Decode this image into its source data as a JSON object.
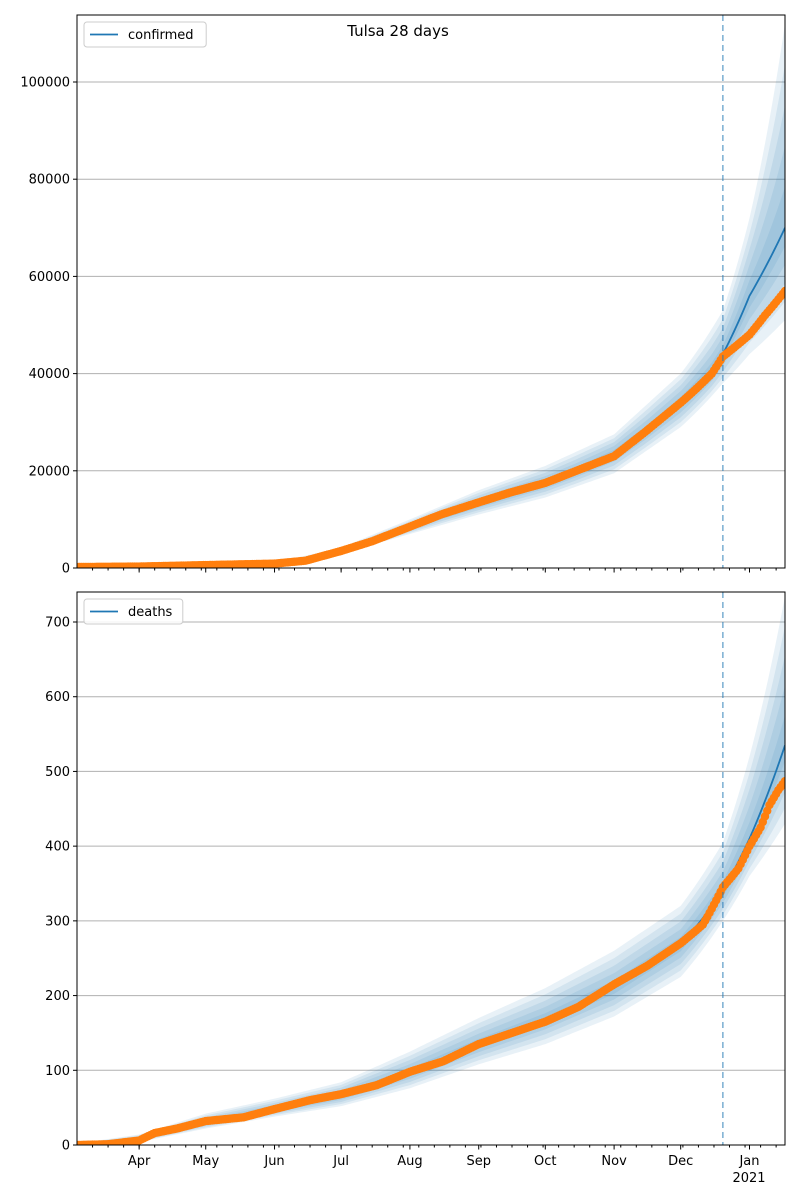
{
  "chart_data": {
    "type": "line",
    "title": "Tulsa 28 days",
    "x_axis": {
      "unit": "days since 2020-03-04",
      "range": [
        0,
        319
      ],
      "ticks": [
        {
          "day": 28,
          "label": "Apr"
        },
        {
          "day": 58,
          "label": "May"
        },
        {
          "day": 89,
          "label": "Jun"
        },
        {
          "day": 119,
          "label": "Jul"
        },
        {
          "day": 150,
          "label": "Aug"
        },
        {
          "day": 181,
          "label": "Sep"
        },
        {
          "day": 211,
          "label": "Oct"
        },
        {
          "day": 242,
          "label": "Nov"
        },
        {
          "day": 272,
          "label": "Dec"
        },
        {
          "day": 303,
          "label": "Jan"
        }
      ],
      "year_label": "2021",
      "forecast_start_day": 291
    },
    "colors": {
      "model": "#1f77b4",
      "observed": "#ff7f0e",
      "grid": "#b0b0b0"
    },
    "panels": [
      {
        "legend": "confirmed",
        "legend_placement": "top-left",
        "ylim": [
          0,
          114000
        ],
        "yticks": [
          0,
          20000,
          40000,
          60000,
          80000,
          100000
        ],
        "grid": true,
        "observed": [
          [
            0,
            200
          ],
          [
            28,
            300
          ],
          [
            58,
            600
          ],
          [
            89,
            900
          ],
          [
            103,
            1500
          ],
          [
            119,
            3500
          ],
          [
            133,
            5500
          ],
          [
            150,
            8500
          ],
          [
            164,
            11000
          ],
          [
            181,
            13500
          ],
          [
            195,
            15500
          ],
          [
            211,
            17500
          ],
          [
            225,
            20000
          ],
          [
            242,
            23000
          ],
          [
            256,
            28000
          ],
          [
            272,
            34000
          ],
          [
            286,
            40000
          ],
          [
            291,
            43500
          ],
          [
            303,
            48000
          ],
          [
            310,
            52000
          ],
          [
            319,
            57000
          ]
        ],
        "model": [
          [
            0,
            200
          ],
          [
            28,
            300
          ],
          [
            58,
            600
          ],
          [
            89,
            900
          ],
          [
            103,
            1500
          ],
          [
            119,
            3500
          ],
          [
            133,
            5500
          ],
          [
            150,
            8300
          ],
          [
            164,
            10800
          ],
          [
            181,
            13300
          ],
          [
            195,
            15300
          ],
          [
            211,
            17500
          ],
          [
            225,
            20000
          ],
          [
            242,
            23500
          ],
          [
            256,
            28000
          ],
          [
            272,
            34000
          ],
          [
            286,
            40500
          ],
          [
            291,
            44000
          ],
          [
            303,
            56000
          ],
          [
            319,
            70000
          ]
        ],
        "band_outer_upper": [
          [
            0,
            250
          ],
          [
            89,
            1100
          ],
          [
            119,
            4200
          ],
          [
            150,
            10000
          ],
          [
            181,
            16000
          ],
          [
            211,
            21000
          ],
          [
            242,
            27500
          ],
          [
            272,
            40000
          ],
          [
            291,
            53000
          ],
          [
            303,
            72000
          ],
          [
            319,
            112000
          ]
        ],
        "band_outer_lower": [
          [
            0,
            150
          ],
          [
            89,
            700
          ],
          [
            119,
            2900
          ],
          [
            150,
            7000
          ],
          [
            181,
            11000
          ],
          [
            211,
            14500
          ],
          [
            242,
            19500
          ],
          [
            272,
            29000
          ],
          [
            291,
            38000
          ],
          [
            303,
            44000
          ],
          [
            319,
            51000
          ]
        ]
      },
      {
        "legend": "deaths",
        "legend_placement": "top-left",
        "ylim": [
          0,
          740
        ],
        "yticks": [
          0,
          100,
          200,
          300,
          400,
          500,
          600,
          700
        ],
        "grid": true,
        "observed": [
          [
            0,
            0
          ],
          [
            14,
            1
          ],
          [
            28,
            6
          ],
          [
            35,
            16
          ],
          [
            45,
            22
          ],
          [
            58,
            32
          ],
          [
            75,
            37
          ],
          [
            89,
            48
          ],
          [
            105,
            60
          ],
          [
            119,
            68
          ],
          [
            135,
            80
          ],
          [
            150,
            98
          ],
          [
            165,
            112
          ],
          [
            181,
            135
          ],
          [
            196,
            150
          ],
          [
            211,
            165
          ],
          [
            226,
            185
          ],
          [
            242,
            215
          ],
          [
            257,
            240
          ],
          [
            272,
            270
          ],
          [
            282,
            295
          ],
          [
            291,
            345
          ],
          [
            298,
            370
          ],
          [
            303,
            400
          ],
          [
            308,
            425
          ],
          [
            312,
            455
          ],
          [
            316,
            475
          ],
          [
            319,
            487
          ]
        ],
        "model": [
          [
            0,
            0
          ],
          [
            28,
            8
          ],
          [
            58,
            30
          ],
          [
            89,
            48
          ],
          [
            119,
            66
          ],
          [
            150,
            97
          ],
          [
            181,
            135
          ],
          [
            211,
            168
          ],
          [
            242,
            210
          ],
          [
            272,
            268
          ],
          [
            291,
            340
          ],
          [
            303,
            410
          ],
          [
            319,
            535
          ]
        ],
        "band_outer_upper": [
          [
            0,
            2
          ],
          [
            28,
            14
          ],
          [
            58,
            42
          ],
          [
            89,
            62
          ],
          [
            119,
            84
          ],
          [
            150,
            125
          ],
          [
            181,
            170
          ],
          [
            211,
            210
          ],
          [
            242,
            260
          ],
          [
            272,
            320
          ],
          [
            291,
            405
          ],
          [
            303,
            520
          ],
          [
            319,
            735
          ]
        ],
        "band_outer_lower": [
          [
            0,
            0
          ],
          [
            28,
            4
          ],
          [
            58,
            22
          ],
          [
            89,
            38
          ],
          [
            119,
            52
          ],
          [
            150,
            76
          ],
          [
            181,
            108
          ],
          [
            211,
            135
          ],
          [
            242,
            172
          ],
          [
            272,
            225
          ],
          [
            291,
            300
          ],
          [
            303,
            360
          ],
          [
            319,
            430
          ]
        ]
      }
    ]
  }
}
